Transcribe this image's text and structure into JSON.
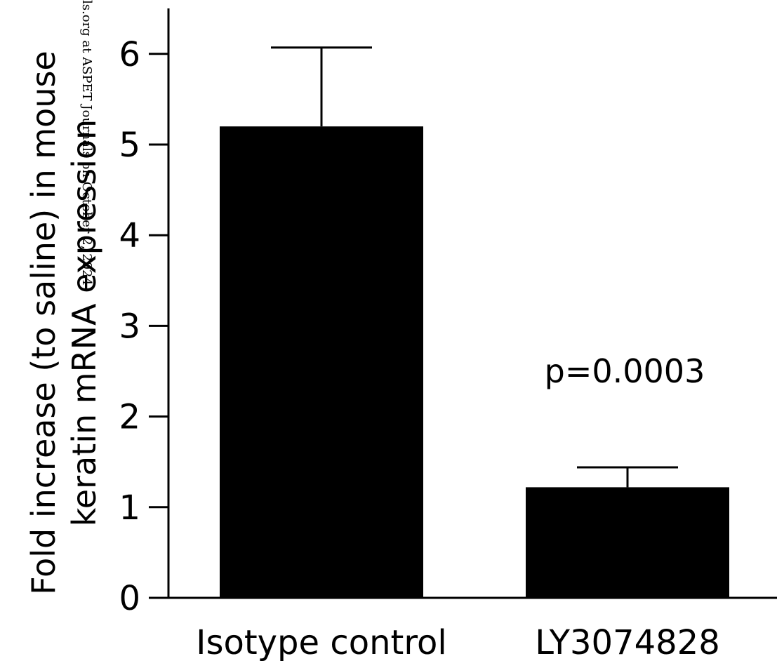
{
  "watermark": "ls.org at ASPET Journals on October 2, 2024",
  "chart_data": {
    "type": "bar",
    "categories": [
      "Isotype control",
      "LY3074828"
    ],
    "values": [
      5.2,
      1.22
    ],
    "error_upper": [
      6.07,
      1.44
    ],
    "yticks": [
      0,
      1,
      2,
      3,
      4,
      5,
      6
    ],
    "ylim": [
      0,
      6.5
    ],
    "title": "",
    "xlabel": "",
    "ylabel_lines": [
      "Fold increase (to saline) in mouse",
      "keratin mRNA expression"
    ],
    "annotations": [
      {
        "text": "p=0.0003",
        "category": "LY3074828"
      }
    ],
    "bar_color": "#000000",
    "grid": false,
    "legend": "none"
  }
}
